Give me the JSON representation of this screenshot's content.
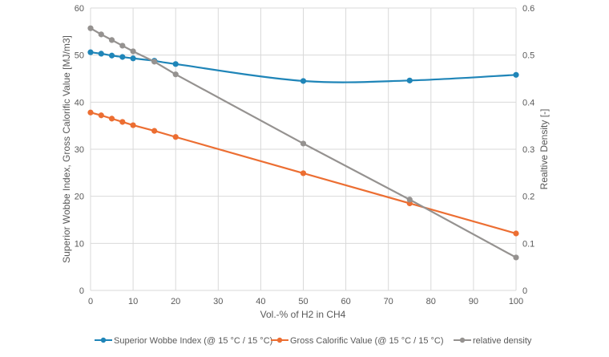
{
  "chart_data": {
    "type": "line",
    "xlabel": "Vol.-% of H2 in CH4",
    "ylabel": "Superior Wobbe Index, Gross Calorific Value  [MJ/m3]",
    "y2label": "Realtive Density [-]",
    "xlim": [
      0,
      100
    ],
    "ylim": [
      0,
      60
    ],
    "y2lim": [
      0,
      0.6
    ],
    "xticks": [
      "0",
      "10",
      "20",
      "30",
      "40",
      "50",
      "60",
      "70",
      "80",
      "90",
      "100"
    ],
    "yticks": [
      "0",
      "10",
      "20",
      "30",
      "40",
      "50",
      "60"
    ],
    "y2ticks": [
      "0",
      "0.1",
      "0.2",
      "0.3",
      "0.4",
      "0.5",
      "0.6"
    ],
    "grid": true,
    "legend_position": "bottom",
    "x": [
      0,
      2.5,
      5,
      7.5,
      10,
      15,
      20,
      50,
      75,
      100
    ],
    "series": [
      {
        "name": "Superior Wobbe Index (@ 15 °C / 15 °C)",
        "axis": "left",
        "color": "#1f85b8",
        "smooth": true,
        "values": [
          50.6,
          50.3,
          49.9,
          49.6,
          49.3,
          48.8,
          48.1,
          44.5,
          44.6,
          45.8
        ]
      },
      {
        "name": "Gross Calorific Value (@ 15 °C / 15 °C)",
        "axis": "left",
        "color": "#ec6e32",
        "smooth": false,
        "values": [
          37.8,
          37.2,
          36.5,
          35.8,
          35.1,
          33.9,
          32.6,
          24.9,
          18.5,
          12.1
        ]
      },
      {
        "name": "relative density",
        "axis": "right",
        "color": "#959290",
        "smooth": false,
        "values": [
          0.557,
          0.544,
          0.532,
          0.52,
          0.508,
          0.486,
          0.459,
          0.312,
          0.193,
          0.07
        ]
      }
    ]
  }
}
